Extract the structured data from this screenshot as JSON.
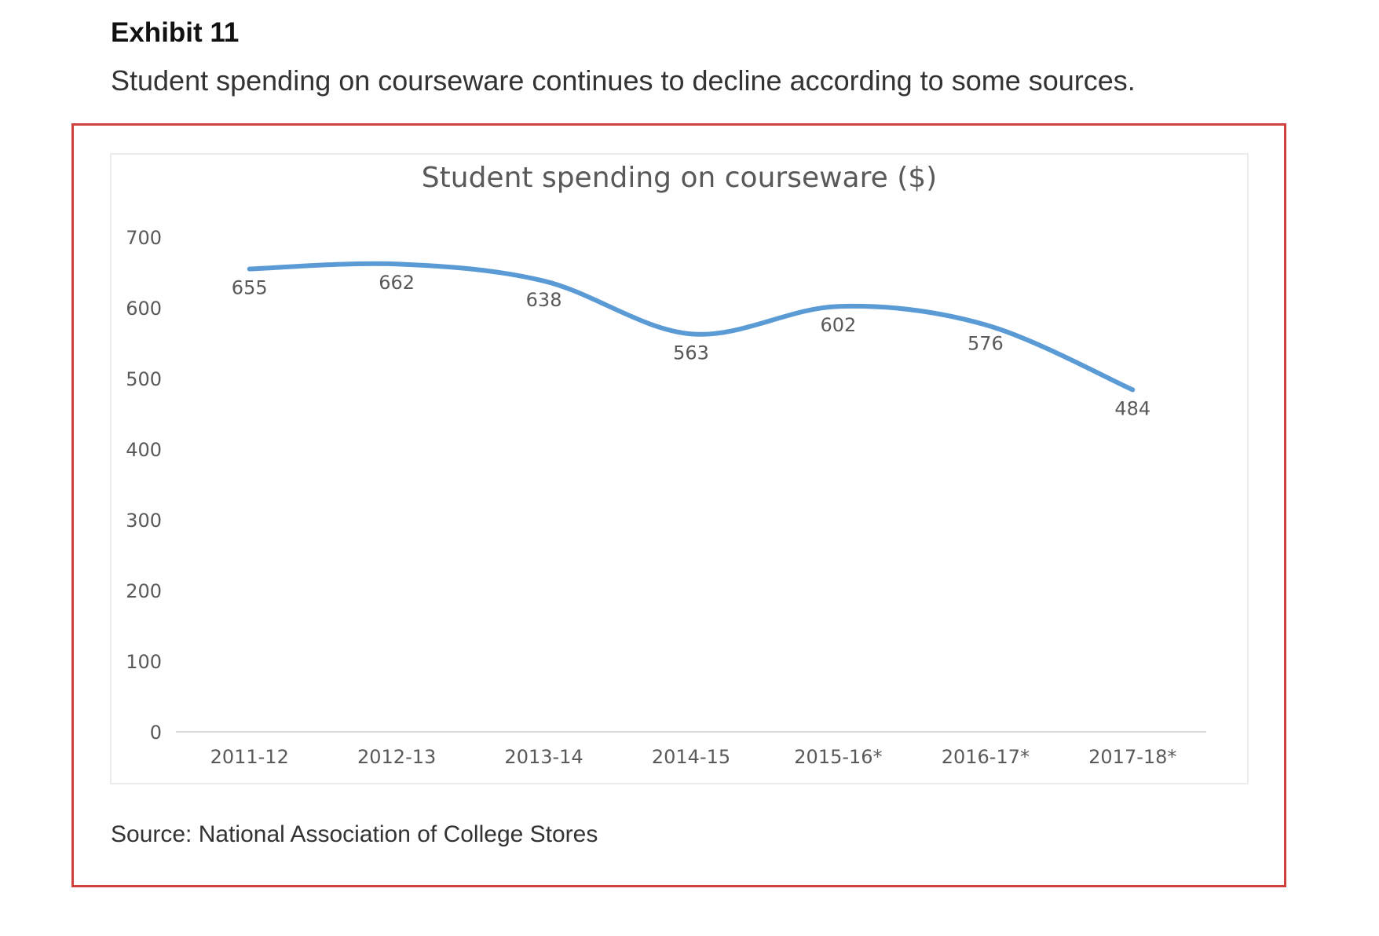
{
  "exhibit": {
    "label": "Exhibit 11",
    "subtitle": "Student spending on courseware continues to decline according to some sources.",
    "source": "Source: National Association of College Stores"
  },
  "colors": {
    "frame": "#d0413d",
    "line": "#5b9bd5",
    "axis_text": "#595959",
    "title_text": "#595959",
    "axis_line": "#d9d9d9"
  },
  "chart_data": {
    "type": "line",
    "title": "Student spending on courseware ($)",
    "xlabel": "",
    "ylabel": "",
    "categories": [
      "2011-12",
      "2012-13",
      "2013-14",
      "2014-15",
      "2015-16*",
      "2016-17*",
      "2017-18*"
    ],
    "series": [
      {
        "values": [
          655,
          662,
          638,
          563,
          602,
          576,
          484
        ],
        "data_labels": [
          "655",
          "662",
          "638",
          "563",
          "602",
          "576",
          "484"
        ]
      }
    ],
    "y_ticks": [
      "0",
      "100",
      "200",
      "300",
      "400",
      "500",
      "600",
      "700"
    ],
    "ylim": [
      0,
      700
    ],
    "grid": false,
    "legend": "none",
    "smooth": true
  }
}
